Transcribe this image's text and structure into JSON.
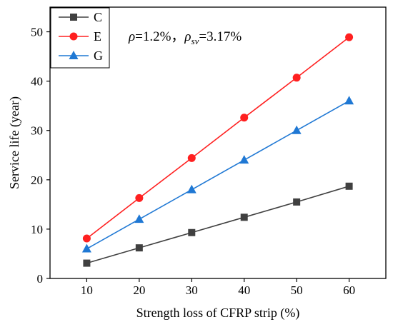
{
  "chart_data": {
    "type": "line",
    "xlabel": "Strength loss of CFRP strip (%)",
    "ylabel": "Service life (year)",
    "x": [
      10,
      20,
      30,
      40,
      50,
      60
    ],
    "xlim": [
      3,
      67
    ],
    "ylim": [
      0,
      55
    ],
    "xticks": [
      10,
      20,
      30,
      40,
      50,
      60
    ],
    "yticks": [
      0,
      10,
      20,
      30,
      40,
      50
    ],
    "grid": false,
    "legend_position": "top-left",
    "series": [
      {
        "name": "C",
        "values": [
          3.1,
          6.2,
          9.3,
          12.4,
          15.5,
          18.7
        ],
        "color": "#404040",
        "marker": "square"
      },
      {
        "name": "E",
        "values": [
          8.1,
          16.3,
          24.4,
          32.6,
          40.7,
          48.9
        ],
        "color": "#ff2020",
        "marker": "circle"
      },
      {
        "name": "G",
        "values": [
          6.0,
          12.0,
          18.0,
          24.0,
          30.0,
          36.0
        ],
        "color": "#1f78d4",
        "marker": "triangle"
      }
    ],
    "annotation": {
      "rho_symbol": "ρ",
      "rho_value": "=1.2%，",
      "rhosv_symbol": "ρ",
      "rhosv_sub": "sv",
      "rhosv_value": "=3.17%"
    }
  }
}
